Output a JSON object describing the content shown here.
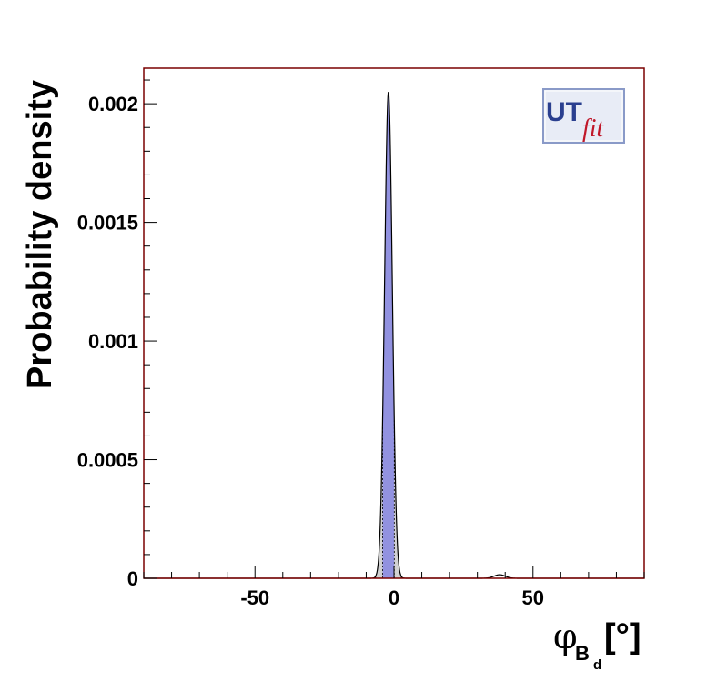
{
  "chart_data": {
    "type": "area",
    "xlabel": {
      "symbol": "φ",
      "subscript": "B",
      "subsubscript": "d",
      "unit": "[°]"
    },
    "ylabel": "Probability density",
    "xlim": [
      -90,
      90
    ],
    "ylim": [
      0,
      0.00215
    ],
    "x_ticks": [
      -50,
      0,
      50
    ],
    "x_tick_labels": [
      "-50",
      "0",
      "50"
    ],
    "y_ticks": [
      0,
      0.0005,
      0.001,
      0.0015,
      0.002
    ],
    "y_tick_labels": [
      "0",
      "0.0005",
      "0.001",
      "0.0015",
      "0.002"
    ],
    "grid": false,
    "series": [
      {
        "peak_x": -2,
        "peak_y": 0.00205,
        "sigma": 1.4,
        "secondary_peak_x": 38,
        "secondary_peak_y": 1.5e-05,
        "secondary_sigma": 2.0,
        "range_68": [
          -4.1,
          0.1
        ],
        "range_95": [
          -6.6,
          2.6
        ]
      }
    ],
    "colors": {
      "region_68": "#9292e0",
      "region_95": "#d2d2d2",
      "curve": "#000000",
      "frame": "#7a0000"
    }
  },
  "logo": {
    "part1": "UT",
    "part2": "fit"
  }
}
